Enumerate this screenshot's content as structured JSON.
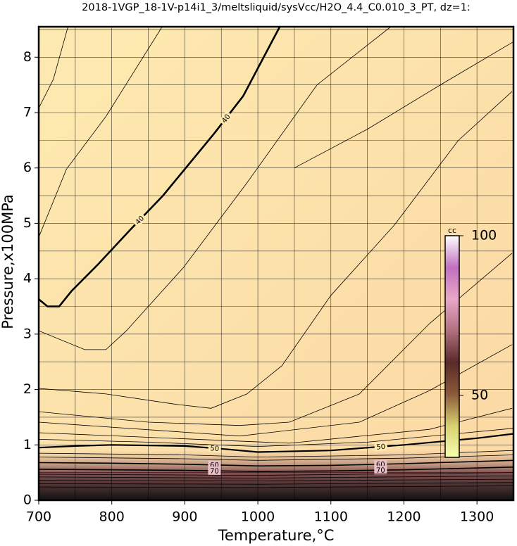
{
  "chart_data": {
    "type": "contour",
    "title": "2018-1VGP_18-1V-p14i1_3/meltsliquid/sysVcc/H2O_4.4_C0.010_3_PT, dz=1:",
    "x_label": "Temperature,°C",
    "y_label": "Pressure,x100MPa",
    "xlim": [
      700,
      1350
    ],
    "ylim": [
      0,
      8.55
    ],
    "xticks": [
      700,
      800,
      900,
      1000,
      1100,
      1200,
      1300
    ],
    "yticks": [
      0,
      1,
      2,
      3,
      4,
      5,
      6,
      7,
      8
    ],
    "xgrid": [
      750,
      800,
      850,
      900,
      950,
      1000,
      1050,
      1100,
      1150,
      1200,
      1250,
      1300
    ],
    "ygrid": [
      0.5,
      1,
      1.5,
      2,
      2.5,
      3,
      3.5,
      4,
      4.5,
      5,
      5.5,
      6,
      6.5,
      7,
      7.5,
      8,
      8.5
    ],
    "contours": [
      {
        "level": 40,
        "line_width": 2.6,
        "x": [
          700,
          712,
          728,
          745,
          782,
          825,
          870,
          940,
          980,
          1030
        ],
        "y": [
          3.63,
          3.5,
          3.5,
          3.78,
          4.27,
          4.88,
          5.5,
          6.62,
          7.3,
          8.55
        ]
      },
      {
        "level": 50,
        "line_width": 2.2,
        "x": [
          700,
          750,
          800,
          900,
          950,
          1000,
          1100,
          1200,
          1300,
          1350
        ],
        "y": [
          0.95,
          0.98,
          1.0,
          0.98,
          0.93,
          0.87,
          0.9,
          1.0,
          1.12,
          1.2
        ]
      },
      {
        "level": 60,
        "line_width": 1.6,
        "x": [
          700,
          800,
          900,
          1000,
          1100,
          1200,
          1350
        ],
        "y": [
          0.68,
          0.67,
          0.65,
          0.62,
          0.63,
          0.66,
          0.72
        ]
      },
      {
        "level": 70,
        "line_width": 1.6,
        "x": [
          700,
          800,
          900,
          1000,
          1100,
          1200,
          1350
        ],
        "y": [
          0.56,
          0.55,
          0.54,
          0.52,
          0.53,
          0.55,
          0.6
        ]
      },
      {
        "x": [
          700,
          720,
          740
        ],
        "y": [
          7.08,
          7.6,
          8.55
        ]
      },
      {
        "x": [
          700,
          738,
          792,
          869
        ],
        "y": [
          4.75,
          5.98,
          6.93,
          8.55
        ]
      },
      {
        "x": [
          700,
          763,
          792,
          820,
          898,
          985,
          1081,
          1182
        ],
        "y": [
          3.06,
          2.72,
          2.72,
          3.06,
          4.2,
          5.73,
          7.5,
          8.55
        ]
      },
      {
        "x": [
          700,
          792,
          889,
          936,
          985,
          1033,
          1100,
          1187,
          1274,
          1348
        ],
        "y": [
          2.02,
          1.92,
          1.73,
          1.66,
          1.92,
          2.43,
          3.7,
          4.97,
          6.49,
          7.38
        ]
      },
      {
        "x": [
          700,
          850,
          975,
          1043,
          1139,
          1235,
          1348
        ],
        "y": [
          1.6,
          1.41,
          1.35,
          1.41,
          1.92,
          3.19,
          4.46
        ]
      },
      {
        "x": [
          700,
          975,
          1139,
          1235,
          1348
        ],
        "y": [
          1.41,
          1.16,
          1.41,
          1.98,
          2.81
        ]
      },
      {
        "x": [
          700,
          1043,
          1235,
          1348
        ],
        "y": [
          1.22,
          1.03,
          1.28,
          1.66
        ]
      },
      {
        "x": [
          1050,
          1150,
          1250,
          1350
        ],
        "y": [
          6.0,
          6.7,
          7.5,
          8.28
        ]
      },
      {
        "x": [
          700,
          850,
          1000,
          1150,
          1350
        ],
        "y": [
          1.1,
          1.05,
          0.97,
          1.05,
          1.3
        ]
      },
      {
        "x": [
          700,
          900,
          1000,
          1200,
          1350
        ],
        "y": [
          0.85,
          0.82,
          0.78,
          0.82,
          0.9
        ]
      },
      {
        "x": [
          700,
          900,
          1000,
          1200,
          1350
        ],
        "y": [
          0.78,
          0.75,
          0.72,
          0.76,
          0.82
        ]
      },
      {
        "x": [
          700,
          1000,
          1350
        ],
        "y": [
          0.47,
          0.45,
          0.5
        ]
      },
      {
        "x": [
          700,
          1000,
          1350
        ],
        "y": [
          0.42,
          0.4,
          0.44
        ]
      },
      {
        "x": [
          700,
          1000,
          1350
        ],
        "y": [
          0.36,
          0.35,
          0.38
        ]
      },
      {
        "x": [
          700,
          1000,
          1350
        ],
        "y": [
          0.3,
          0.29,
          0.32
        ]
      },
      {
        "x": [
          700,
          1000,
          1350
        ],
        "y": [
          0.24,
          0.23,
          0.26
        ]
      }
    ],
    "colorbar": {
      "label": "cc",
      "lim": [
        30.6,
        100
      ],
      "ticks": [
        50,
        100
      ],
      "colors": [
        "#f6ffb0",
        "#d8d070",
        "#8a5a3a",
        "#5a2a2a",
        "#b07080",
        "#e8a8c8",
        "#c070c0",
        "#ffffff"
      ]
    }
  }
}
